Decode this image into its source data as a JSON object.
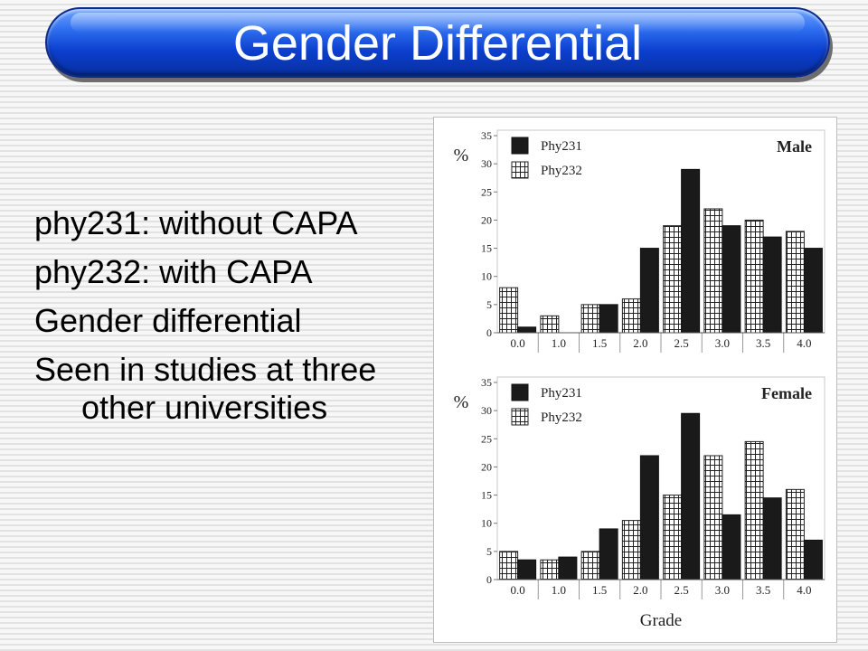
{
  "title": "Gender Differential",
  "bullets": [
    "phy231: without CAPA",
    "phy232: with CAPA",
    "Gender differential",
    "Seen in studies at three other universities"
  ],
  "chart_data": [
    {
      "type": "bar",
      "title": "Male",
      "ylabel": "%",
      "xlabel": "",
      "ylim": [
        0,
        35
      ],
      "yticks": [
        0,
        5,
        10,
        15,
        20,
        25,
        30,
        35
      ],
      "categories": [
        "0.0",
        "1.0",
        "1.5",
        "2.0",
        "2.5",
        "3.0",
        "3.5",
        "4.0"
      ],
      "legend_position": "top-left",
      "series": [
        {
          "name": "Phy231",
          "values": [
            1,
            0,
            5,
            15,
            29,
            19,
            17,
            15
          ],
          "style": "solid",
          "color": "#1a1a1a"
        },
        {
          "name": "Phy232",
          "values": [
            8,
            3,
            5,
            6,
            19,
            22,
            20,
            18
          ],
          "style": "grid",
          "color": "#ffffff"
        }
      ]
    },
    {
      "type": "bar",
      "title": "Female",
      "ylabel": "%",
      "xlabel": "Grade",
      "ylim": [
        0,
        35
      ],
      "yticks": [
        0,
        5,
        10,
        15,
        20,
        25,
        30,
        35
      ],
      "categories": [
        "0.0",
        "1.0",
        "1.5",
        "2.0",
        "2.5",
        "3.0",
        "3.5",
        "4.0"
      ],
      "legend_position": "top-left",
      "series": [
        {
          "name": "Phy231",
          "values": [
            3.5,
            4,
            9,
            22,
            29.5,
            11.5,
            14.5,
            7
          ],
          "style": "solid",
          "color": "#1a1a1a"
        },
        {
          "name": "Phy232",
          "values": [
            5,
            3.5,
            5,
            10.5,
            15,
            22,
            24.5,
            16
          ],
          "style": "grid",
          "color": "#ffffff"
        }
      ]
    }
  ]
}
